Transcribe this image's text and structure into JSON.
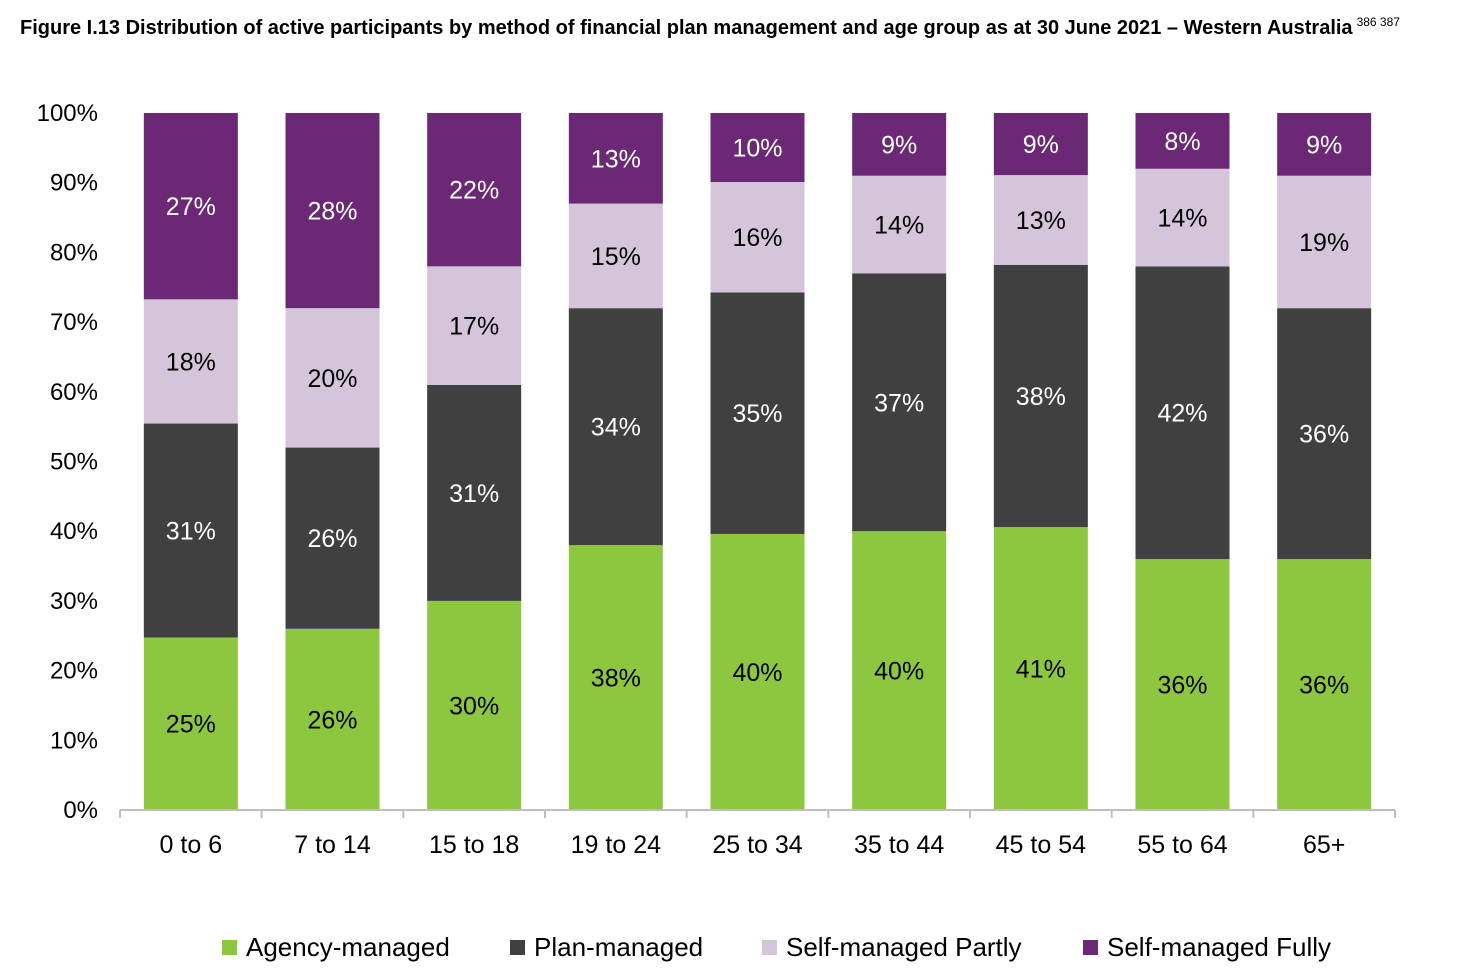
{
  "title": "Figure I.13 Distribution of active participants by method of financial plan management and age group as at 30 June 2021 – Western Australia",
  "title_refs": "386 387",
  "colors": {
    "agency": "#8dc63f",
    "plan": "#404041",
    "partly": "#d5c5db",
    "fully": "#6b2975",
    "axis": "#bfbfbf",
    "label_dark": "#000000",
    "label_light": "#ffffff"
  },
  "chart_data": {
    "type": "bar",
    "stacked": true,
    "categories": [
      "0 to 6",
      "7 to 14",
      "15 to 18",
      "19 to 24",
      "25 to 34",
      "35 to 44",
      "45 to 54",
      "55 to 64",
      "65+"
    ],
    "series": [
      {
        "name": "Agency-managed",
        "values": [
          25,
          26,
          30,
          38,
          40,
          40,
          41,
          36,
          36
        ],
        "labels": [
          "25%",
          "26%",
          "30%",
          "38%",
          "40%",
          "40%",
          "41%",
          "36%",
          "36%"
        ]
      },
      {
        "name": "Plan-managed",
        "values": [
          31,
          26,
          31,
          34,
          35,
          37,
          38,
          42,
          36
        ],
        "labels": [
          "31%",
          "26%",
          "31%",
          "34%",
          "35%",
          "37%",
          "38%",
          "42%",
          "36%"
        ]
      },
      {
        "name": "Self-managed Partly",
        "values": [
          18,
          20,
          17,
          15,
          16,
          14,
          13,
          14,
          19
        ],
        "labels": [
          "18%",
          "20%",
          "17%",
          "15%",
          "16%",
          "14%",
          "13%",
          "14%",
          "19%"
        ]
      },
      {
        "name": "Self-managed Fully",
        "values": [
          27,
          28,
          22,
          13,
          10,
          9,
          9,
          8,
          9
        ],
        "labels": [
          "27%",
          "28%",
          "22%",
          "13%",
          "10%",
          "9%",
          "9%",
          "8%",
          "9%"
        ]
      }
    ],
    "y_ticks": [
      "0%",
      "10%",
      "20%",
      "30%",
      "40%",
      "50%",
      "60%",
      "70%",
      "80%",
      "90%",
      "100%"
    ],
    "ylim": [
      0,
      100
    ],
    "grid": false,
    "legend": "bottom"
  }
}
